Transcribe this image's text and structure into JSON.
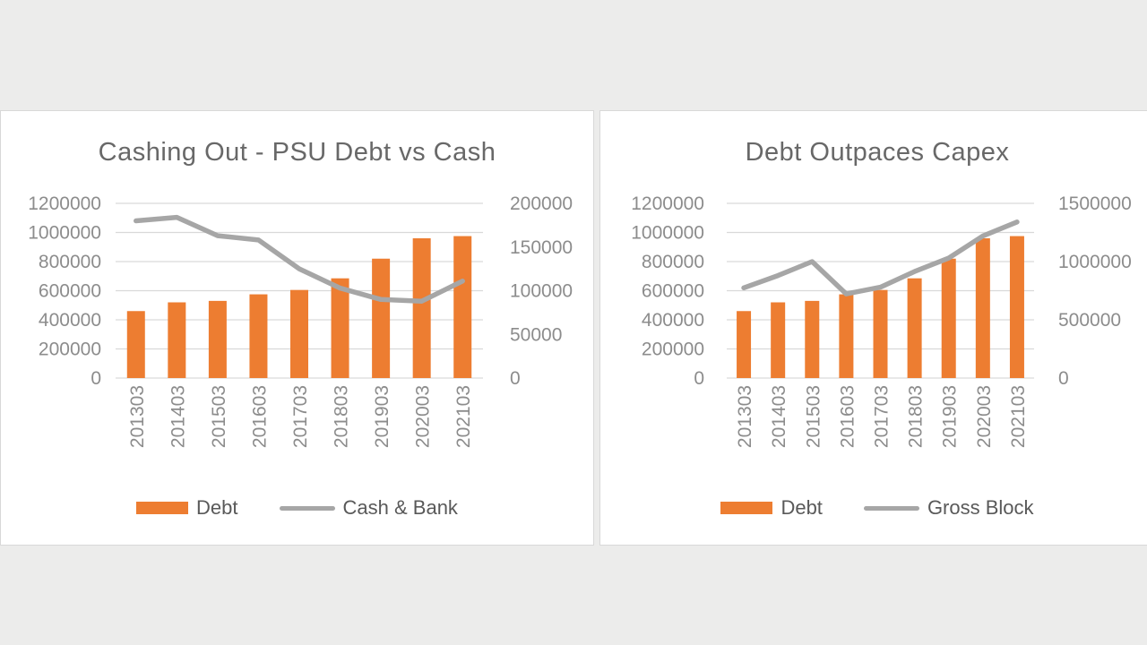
{
  "page": {
    "background_color": "#ECECEB",
    "panel_background": "#FFFFFF",
    "panel_border": "#D8D8D8"
  },
  "colors": {
    "bar": "#ED7D31",
    "line": "#A6A6A6",
    "grid": "#D9D9D9",
    "axis_text": "#8C8C8C",
    "title_text": "#686868",
    "legend_text": "#595959"
  },
  "chart_data": [
    {
      "type": "bar",
      "subtype": "combo-bar-line-dual-axis",
      "title": "Cashing Out - PSU Debt vs Cash",
      "categories": [
        "201303",
        "201403",
        "201503",
        "201603",
        "201703",
        "201803",
        "201903",
        "202003",
        "202103"
      ],
      "series": [
        {
          "name": "Debt",
          "type": "bar",
          "axis": "left",
          "values": [
            460000,
            520000,
            530000,
            575000,
            605000,
            685000,
            820000,
            960000,
            975000
          ]
        },
        {
          "name": "Cash & Bank",
          "type": "line",
          "axis": "right",
          "values": [
            180000,
            184000,
            163000,
            158000,
            125000,
            103000,
            90000,
            88000,
            111000
          ]
        }
      ],
      "left_axis": {
        "min": 0,
        "max": 1200000,
        "step": 200000,
        "ticks": [
          "1200000",
          "1000000",
          "800000",
          "600000",
          "400000",
          "200000",
          "0"
        ]
      },
      "right_axis": {
        "min": 0,
        "max": 200000,
        "step": 50000,
        "ticks": [
          "200000",
          "150000",
          "100000",
          "50000",
          "0"
        ]
      },
      "grid": true,
      "legend_position": "bottom"
    },
    {
      "type": "bar",
      "subtype": "combo-bar-line-dual-axis",
      "title": "Debt Outpaces Capex",
      "categories": [
        "201303",
        "201403",
        "201503",
        "201603",
        "201703",
        "201803",
        "201903",
        "202003",
        "202103"
      ],
      "series": [
        {
          "name": "Debt",
          "type": "bar",
          "axis": "left",
          "values": [
            460000,
            520000,
            530000,
            575000,
            605000,
            685000,
            820000,
            960000,
            975000
          ]
        },
        {
          "name": "Gross Block",
          "type": "line",
          "axis": "right",
          "values": [
            775000,
            880000,
            1000000,
            722000,
            780000,
            915000,
            1030000,
            1220000,
            1340000
          ]
        }
      ],
      "left_axis": {
        "min": 0,
        "max": 1200000,
        "step": 200000,
        "ticks": [
          "1200000",
          "1000000",
          "800000",
          "600000",
          "400000",
          "200000",
          "0"
        ]
      },
      "right_axis": {
        "min": 0,
        "max": 1500000,
        "step": 500000,
        "ticks": [
          "1500000",
          "1000000",
          "500000",
          "0"
        ]
      },
      "grid": true,
      "legend_position": "bottom"
    }
  ]
}
